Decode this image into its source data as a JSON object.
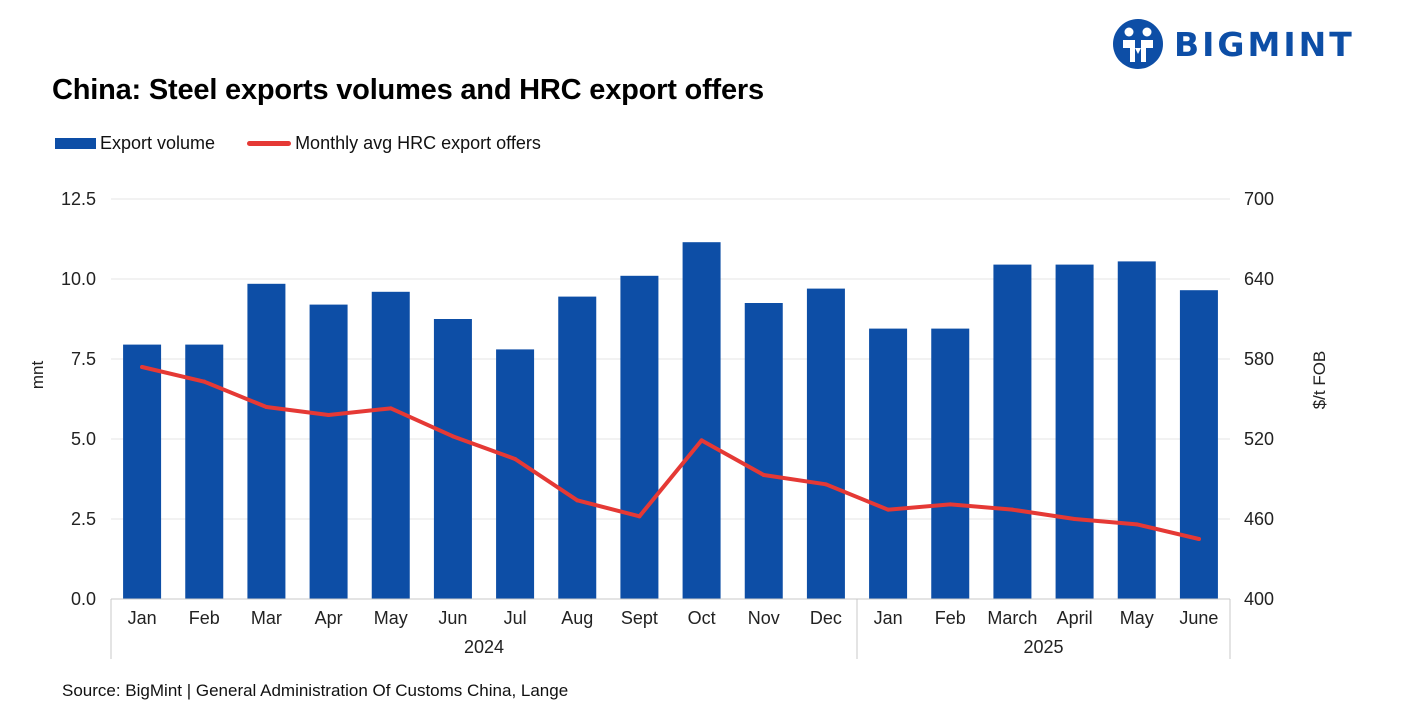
{
  "header": {
    "title": "China: Steel exports volumes and HRC export offers",
    "logo_text": "BIGMINT"
  },
  "legend": {
    "bar_label": "Export volume",
    "line_label": "Monthly avg HRC export offers"
  },
  "footer": {
    "source": "Source: BigMint | General Administration Of Customs China, Lange"
  },
  "colors": {
    "bar": "#0d4ea6",
    "line": "#e53935",
    "grid": "#e6e6e6",
    "axis": "#c8c8c8"
  },
  "chart_data": {
    "type": "bar+line",
    "title": "China: Steel exports volumes and HRC export offers",
    "categories": [
      "Jan",
      "Feb",
      "Mar",
      "Apr",
      "May",
      "Jun",
      "Jul",
      "Aug",
      "Sept",
      "Oct",
      "Nov",
      "Dec",
      "Jan",
      "Feb",
      "March",
      "April",
      "May",
      "June"
    ],
    "groups": [
      {
        "label": "2024",
        "start": 0,
        "end": 11
      },
      {
        "label": "2025",
        "start": 12,
        "end": 17
      }
    ],
    "series": [
      {
        "name": "Export volume",
        "type": "bar",
        "axis": "left",
        "values": [
          7.95,
          7.95,
          9.85,
          9.2,
          9.6,
          8.75,
          7.8,
          9.45,
          10.1,
          11.15,
          9.25,
          9.7,
          8.45,
          8.45,
          10.45,
          10.45,
          10.55,
          9.65
        ]
      },
      {
        "name": "Monthly avg HRC export offers",
        "type": "line",
        "axis": "right",
        "values": [
          574,
          563,
          544,
          538,
          543,
          522,
          505,
          474,
          462,
          519,
          493,
          486,
          467,
          471,
          467,
          460,
          456,
          445
        ]
      }
    ],
    "ylabel": "mnt",
    "y2label": "$/t FOB",
    "ylim": [
      0,
      12.5
    ],
    "y2lim": [
      400,
      700
    ],
    "yticks": [
      "0.0",
      "2.5",
      "5.0",
      "7.5",
      "10.0",
      "12.5"
    ],
    "y2ticks": [
      "400",
      "460",
      "520",
      "580",
      "640",
      "700"
    ],
    "grid": true
  }
}
